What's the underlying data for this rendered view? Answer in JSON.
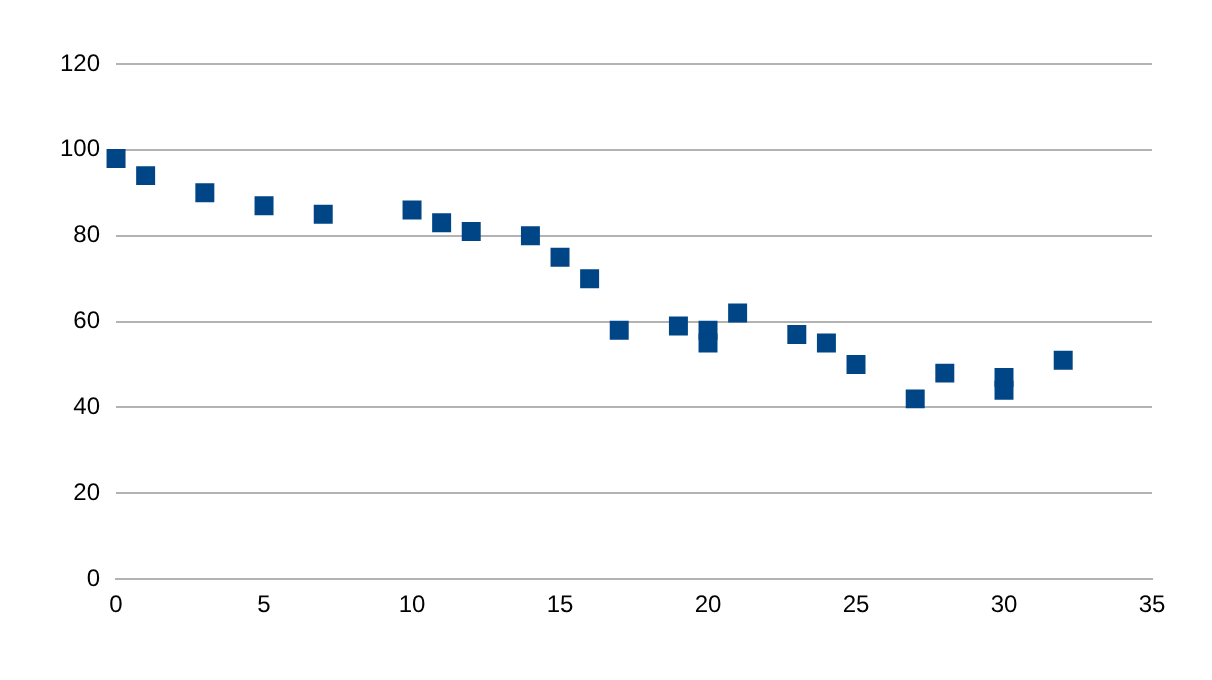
{
  "chart_data": {
    "type": "scatter",
    "x": [
      0,
      1,
      3,
      5,
      7,
      10,
      11,
      12,
      14,
      15,
      16,
      17,
      19,
      20,
      20,
      21,
      23,
      24,
      25,
      27,
      28,
      30,
      30,
      32
    ],
    "values": [
      98,
      94,
      90,
      87,
      85,
      86,
      83,
      81,
      80,
      75,
      70,
      58,
      59,
      58,
      55,
      62,
      57,
      55,
      50,
      42,
      48,
      47,
      44,
      51
    ],
    "color": "#004586",
    "marker": "square",
    "xlim": [
      0,
      35
    ],
    "xticks": [
      0,
      5,
      10,
      15,
      20,
      25,
      30,
      35
    ],
    "ylim": [
      0,
      120
    ],
    "yticks": [
      0,
      20,
      40,
      60,
      80,
      100,
      120
    ],
    "grid": "y",
    "legend": false
  }
}
